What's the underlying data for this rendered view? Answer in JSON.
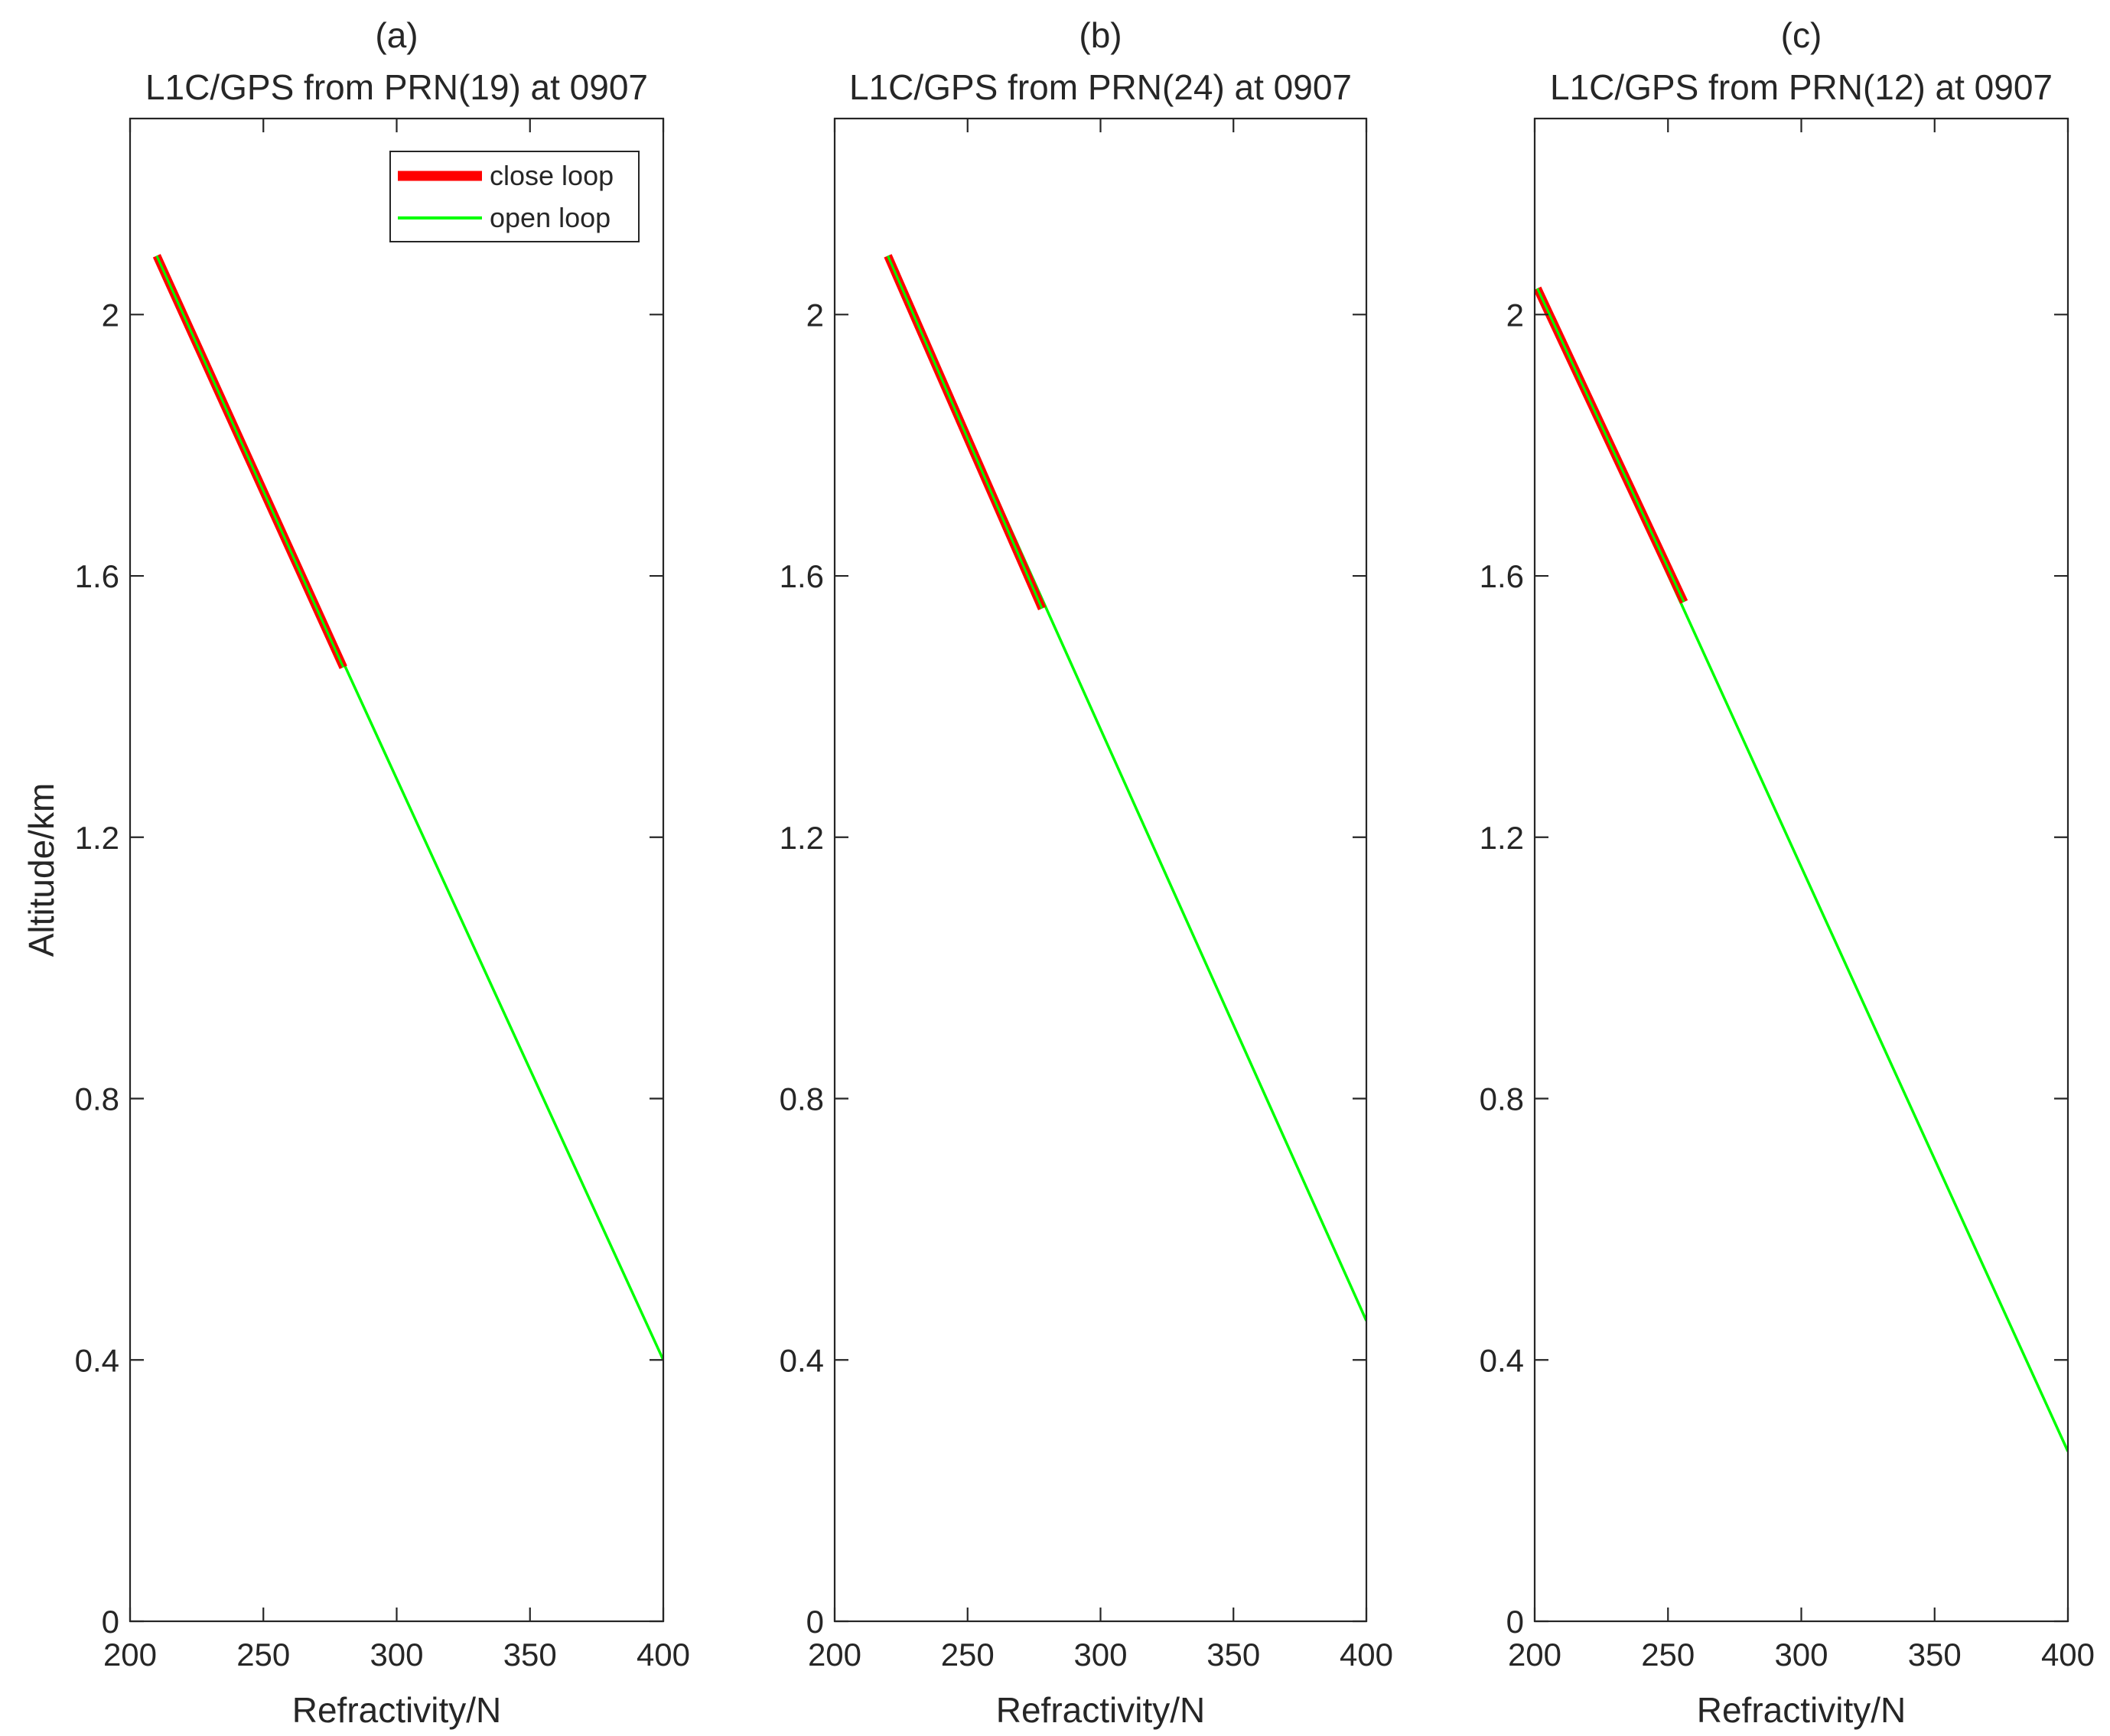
{
  "chart_data": [
    {
      "type": "line",
      "panel_label": "(a)",
      "title": "L1C/GPS from PRN(19) at 0907",
      "xlabel": "Refractivity/N",
      "ylabel": "Altitude/km",
      "xlim": [
        200,
        400
      ],
      "ylim": [
        0,
        2.3
      ],
      "xticks": [
        200,
        250,
        300,
        350,
        400
      ],
      "yticks": [
        0,
        0.4,
        0.8,
        1.2,
        1.6,
        2
      ],
      "xtick_labels": [
        "200",
        "250",
        "300",
        "350",
        "400"
      ],
      "ytick_labels": [
        "0",
        "0.4",
        "0.8",
        "1.2",
        "1.6",
        "2"
      ],
      "legend": {
        "location": "top-right",
        "entries": [
          "close loop",
          "open loop"
        ]
      },
      "series": [
        {
          "name": "close loop",
          "color": "#ff0000",
          "x": [
            210,
            280
          ],
          "y": [
            2.09,
            1.46
          ]
        },
        {
          "name": "open loop",
          "color": "#00ff00",
          "x": [
            210,
            400
          ],
          "y": [
            2.09,
            0.4
          ]
        }
      ]
    },
    {
      "type": "line",
      "panel_label": "(b)",
      "title": "L1C/GPS from PRN(24) at 0907",
      "xlabel": "Refractivity/N",
      "ylabel": "",
      "xlim": [
        200,
        400
      ],
      "ylim": [
        0,
        2.3
      ],
      "xticks": [
        200,
        250,
        300,
        350,
        400
      ],
      "yticks": [
        0,
        0.4,
        0.8,
        1.2,
        1.6,
        2
      ],
      "xtick_labels": [
        "200",
        "250",
        "300",
        "350",
        "400"
      ],
      "ytick_labels": [
        "0",
        "0.4",
        "0.8",
        "1.2",
        "1.6",
        "2"
      ],
      "series": [
        {
          "name": "close loop",
          "color": "#ff0000",
          "x": [
            220,
            278
          ],
          "y": [
            2.09,
            1.55
          ]
        },
        {
          "name": "open loop",
          "color": "#00ff00",
          "x": [
            220,
            400
          ],
          "y": [
            2.09,
            0.46
          ]
        }
      ]
    },
    {
      "type": "line",
      "panel_label": "(c)",
      "title": "L1C/GPS from PRN(12) at 0907",
      "xlabel": "Refractivity/N",
      "ylabel": "",
      "xlim": [
        200,
        400
      ],
      "ylim": [
        0,
        2.3
      ],
      "xticks": [
        200,
        250,
        300,
        350,
        400
      ],
      "yticks": [
        0,
        0.4,
        0.8,
        1.2,
        1.6,
        2
      ],
      "xtick_labels": [
        "200",
        "250",
        "300",
        "350",
        "400"
      ],
      "ytick_labels": [
        "0",
        "0.4",
        "0.8",
        "1.2",
        "1.6",
        "2"
      ],
      "series": [
        {
          "name": "close loop",
          "color": "#ff0000",
          "x": [
            201,
            256
          ],
          "y": [
            2.04,
            1.56
          ]
        },
        {
          "name": "open loop",
          "color": "#00ff00",
          "x": [
            201,
            400
          ],
          "y": [
            2.04,
            0.26
          ]
        }
      ]
    }
  ]
}
